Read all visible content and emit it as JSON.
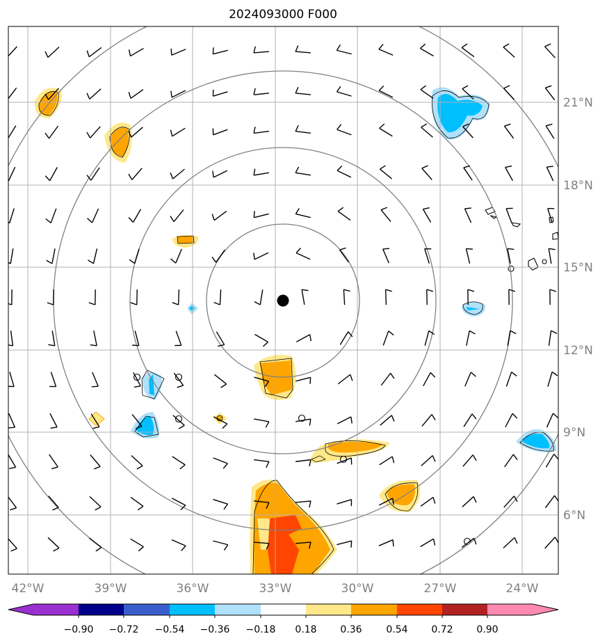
{
  "title": "2024093000 F000",
  "longitude_labels": [
    "42°W",
    "39°W",
    "36°W",
    "33°W",
    "30°W",
    "27°W",
    "24°W"
  ],
  "latitude_labels": [
    "21°N",
    "18°N",
    "15°N",
    "12°N",
    "9°N",
    "6°N"
  ],
  "colorbar": {
    "ticks": [
      "−0.90",
      "−0.72",
      "−0.54",
      "−0.36",
      "−0.18",
      "0.18",
      "0.36",
      "0.54",
      "0.72",
      "0.90"
    ],
    "colors": [
      "#9b30d0",
      "#00008b",
      "#3a5fcd",
      "#00bfff",
      "#b0e0fa",
      "#ffffff",
      "#ffe88a",
      "#ffa500",
      "#ff4500",
      "#b22222",
      "#ff8ab0"
    ]
  },
  "center_marker": {
    "lon": -32.6,
    "lat": 13.8
  },
  "range_rings_count": 4,
  "colors": {
    "grid": "#b0b0b0",
    "ring": "#808080",
    "barb": "#000000",
    "coast": "#000000"
  }
}
